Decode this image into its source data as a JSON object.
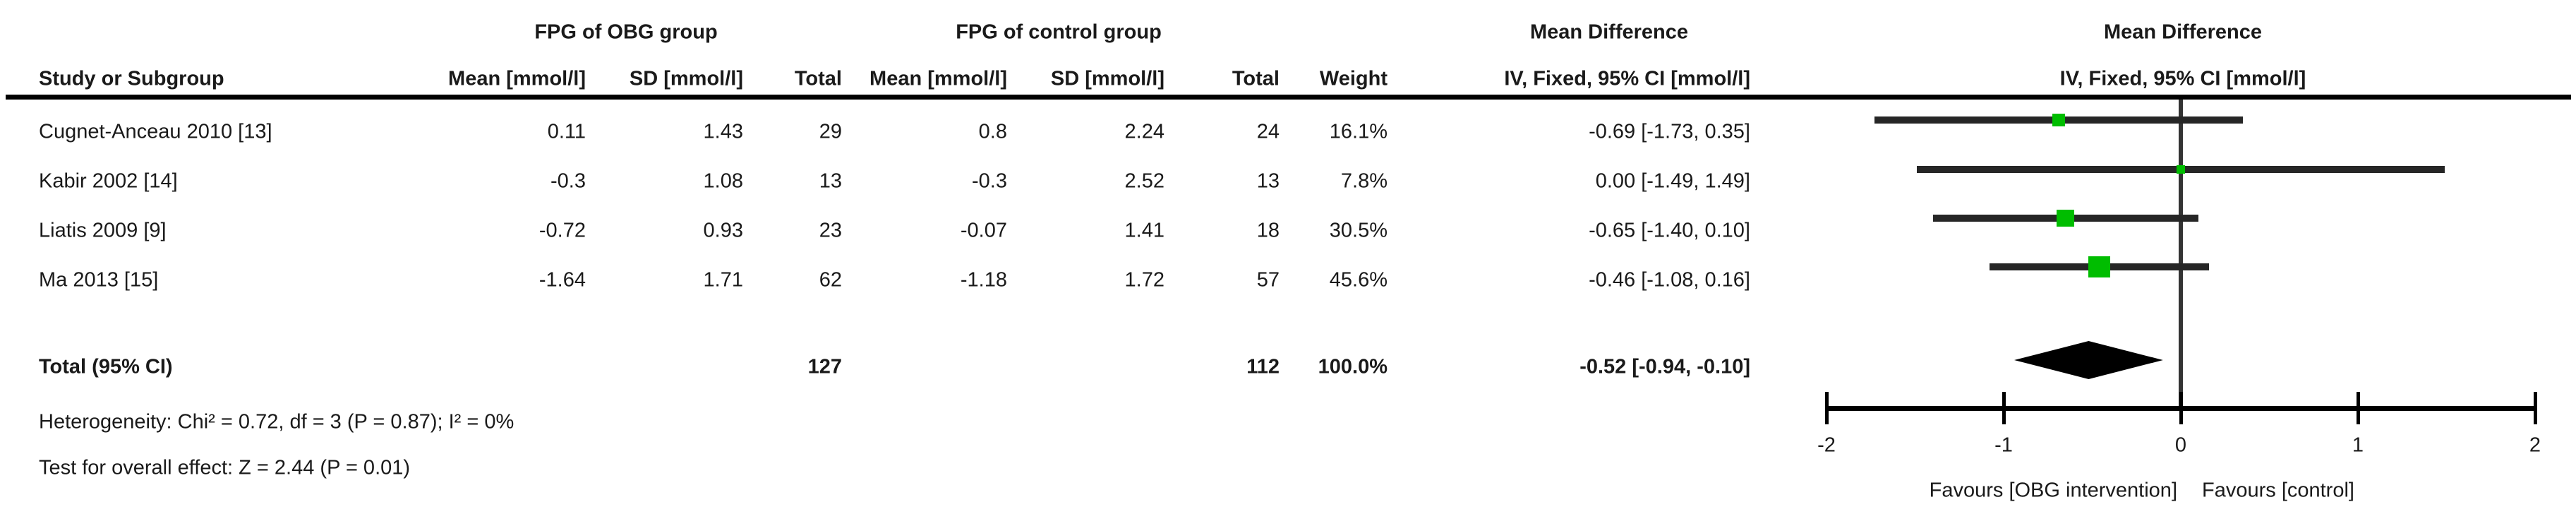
{
  "figure": {
    "group1_header": "FPG of OBG group",
    "group2_header": "FPG of control group",
    "effect_header_text": "Mean Difference",
    "effect_header_plot": "Mean Difference",
    "columns": {
      "study": "Study or Subgroup",
      "mean1": "Mean [mmol/l]",
      "sd1": "SD [mmol/l]",
      "total1": "Total",
      "mean2": "Mean [mmol/l]",
      "sd2": "SD [mmol/l]",
      "total2": "Total",
      "weight": "Weight",
      "ci_text": "IV, Fixed, 95% CI [mmol/l]",
      "ci_plot": "IV, Fixed, 95% CI [mmol/l]"
    },
    "footnotes": {
      "heterogeneity": "Heterogeneity: Chi² = 0.72, df = 3 (P = 0.87); I² = 0%",
      "overall_effect": "Test for overall effect: Z = 2.44 (P = 0.01)"
    }
  },
  "table": {
    "rows": [
      {
        "study": "Cugnet-Anceau 2010 [13]",
        "mean1": "0.11",
        "sd1": "1.43",
        "total1": "29",
        "mean2": "0.8",
        "sd2": "2.24",
        "total2": "24",
        "weight": "16.1%",
        "ci": "-0.69 [-1.73, 0.35]"
      },
      {
        "study": "Kabir 2002 [14]",
        "mean1": "-0.3",
        "sd1": "1.08",
        "total1": "13",
        "mean2": "-0.3",
        "sd2": "2.52",
        "total2": "13",
        "weight": "7.8%",
        "ci": "0.00 [-1.49, 1.49]"
      },
      {
        "study": "Liatis 2009 [9]",
        "mean1": "-0.72",
        "sd1": "0.93",
        "total1": "23",
        "mean2": "-0.07",
        "sd2": "1.41",
        "total2": "18",
        "weight": "30.5%",
        "ci": "-0.65 [-1.40, 0.10]"
      },
      {
        "study": "Ma 2013 [15]",
        "mean1": "-1.64",
        "sd1": "1.71",
        "total1": "62",
        "mean2": "-1.18",
        "sd2": "1.72",
        "total2": "57",
        "weight": "45.6%",
        "ci": "-0.46 [-1.08, 0.16]"
      }
    ],
    "total": {
      "study": "Total (95% CI)",
      "total1": "127",
      "total2": "112",
      "weight": "100.0%",
      "ci": "-0.52 [-0.94, -0.10]"
    }
  },
  "chart_data": {
    "type": "forest",
    "title": "Mean Difference",
    "effect_measure": "IV, Fixed, 95% CI [mmol/l]",
    "xlim": [
      -2,
      2
    ],
    "x_ticks": [
      -2,
      -1,
      0,
      1,
      2
    ],
    "x_label_left": "Favours [OBG intervention]",
    "x_label_right": "Favours [control]",
    "marker_color": "#00bd00",
    "line_color": "#262626",
    "diamond_color": "#000000",
    "studies": [
      {
        "label": "Cugnet-Anceau 2010 [13]",
        "md": -0.69,
        "ci_low": -1.73,
        "ci_high": 0.35,
        "weight_pct": 16.1
      },
      {
        "label": "Kabir 2002 [14]",
        "md": 0.0,
        "ci_low": -1.49,
        "ci_high": 1.49,
        "weight_pct": 7.8
      },
      {
        "label": "Liatis 2009 [9]",
        "md": -0.65,
        "ci_low": -1.4,
        "ci_high": 0.1,
        "weight_pct": 30.5
      },
      {
        "label": "Ma 2013 [15]",
        "md": -0.46,
        "ci_low": -1.08,
        "ci_high": 0.16,
        "weight_pct": 45.6
      }
    ],
    "total": {
      "label": "Total (95% CI)",
      "md": -0.52,
      "ci_low": -0.94,
      "ci_high": -0.1
    }
  }
}
